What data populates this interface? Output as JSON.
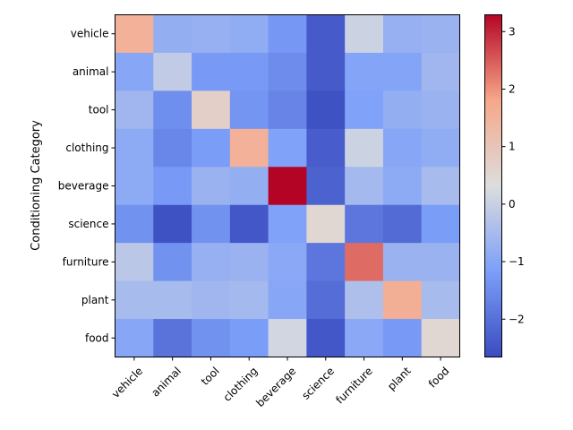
{
  "chart_data": {
    "type": "heatmap",
    "ylabel": "Conditioning Category",
    "xlabel": "",
    "x_categories": [
      "vehicle",
      "animal",
      "tool",
      "clothing",
      "beverage",
      "science",
      "furniture",
      "plant",
      "food"
    ],
    "y_categories": [
      "vehicle",
      "animal",
      "tool",
      "clothing",
      "beverage",
      "science",
      "furniture",
      "plant",
      "food"
    ],
    "values": [
      [
        1.55,
        -0.8,
        -0.75,
        -0.85,
        -1.3,
        -2.4,
        0.05,
        -0.75,
        -0.7
      ],
      [
        -1.0,
        -0.1,
        -1.25,
        -1.25,
        -1.5,
        -2.4,
        -1.05,
        -1.05,
        -0.6
      ],
      [
        -0.6,
        -1.45,
        0.7,
        -1.35,
        -1.65,
        -2.55,
        -1.1,
        -0.8,
        -0.7
      ],
      [
        -0.9,
        -1.6,
        -1.2,
        1.55,
        -1.1,
        -2.35,
        0.05,
        -1.0,
        -0.85
      ],
      [
        -0.9,
        -1.25,
        -0.7,
        -0.8,
        3.3,
        -2.25,
        -0.55,
        -0.9,
        -0.5
      ],
      [
        -1.4,
        -2.55,
        -1.4,
        -2.45,
        -1.1,
        0.5,
        -1.9,
        -2.1,
        -1.2
      ],
      [
        -0.2,
        -1.4,
        -0.75,
        -0.7,
        -0.95,
        -1.9,
        2.35,
        -0.7,
        -0.7
      ],
      [
        -0.5,
        -0.5,
        -0.6,
        -0.55,
        -1.0,
        -2.05,
        -0.4,
        1.6,
        -0.5
      ],
      [
        -1.0,
        -1.95,
        -1.4,
        -1.2,
        0.15,
        -2.45,
        -0.95,
        -1.25,
        0.5
      ]
    ],
    "vmin": -2.65,
    "vmax": 3.3,
    "colormap": "coolwarm",
    "colorbar_ticks": [
      "3",
      "2",
      "1",
      "0",
      "−1",
      "−2"
    ],
    "colorbar_tick_values": [
      3,
      2,
      1,
      0,
      -1,
      -2
    ]
  }
}
